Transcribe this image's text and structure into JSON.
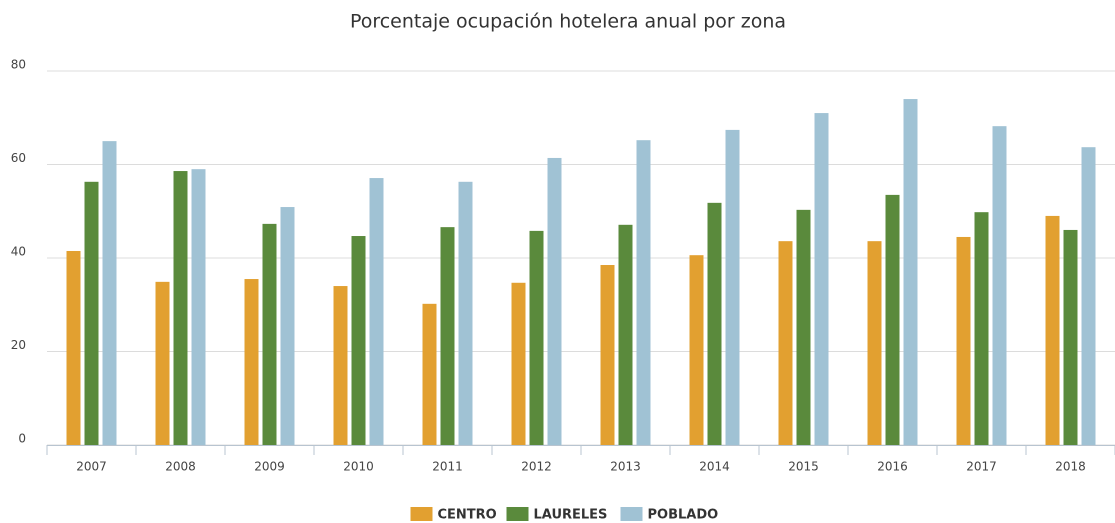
{
  "chart_data": {
    "type": "bar",
    "title": "Porcentaje ocupación hotelera anual por zona",
    "categories": [
      "2007",
      "2008",
      "2009",
      "2010",
      "2011",
      "2012",
      "2013",
      "2014",
      "2015",
      "2016",
      "2017",
      "2018"
    ],
    "series": [
      {
        "name": "CENTRO",
        "color": "#e2a030",
        "values": [
          41.5,
          34.9,
          35.5,
          34.0,
          30.2,
          34.7,
          38.5,
          40.6,
          43.6,
          43.6,
          44.5,
          49.0
        ]
      },
      {
        "name": "LAURELES",
        "color": "#5a8a3c",
        "values": [
          56.3,
          58.6,
          47.3,
          44.7,
          46.6,
          45.8,
          47.1,
          51.8,
          50.3,
          53.5,
          49.8,
          46.0
        ]
      },
      {
        "name": "POBLADO",
        "color": "#a0c2d4",
        "values": [
          65.0,
          59.0,
          50.9,
          57.1,
          56.3,
          61.4,
          65.2,
          67.4,
          71.0,
          74.0,
          68.2,
          63.7
        ]
      }
    ],
    "ylim": [
      0,
      80
    ],
    "yticks": [
      0,
      20,
      40,
      60,
      80
    ],
    "grid": true,
    "legend": "bottom"
  }
}
